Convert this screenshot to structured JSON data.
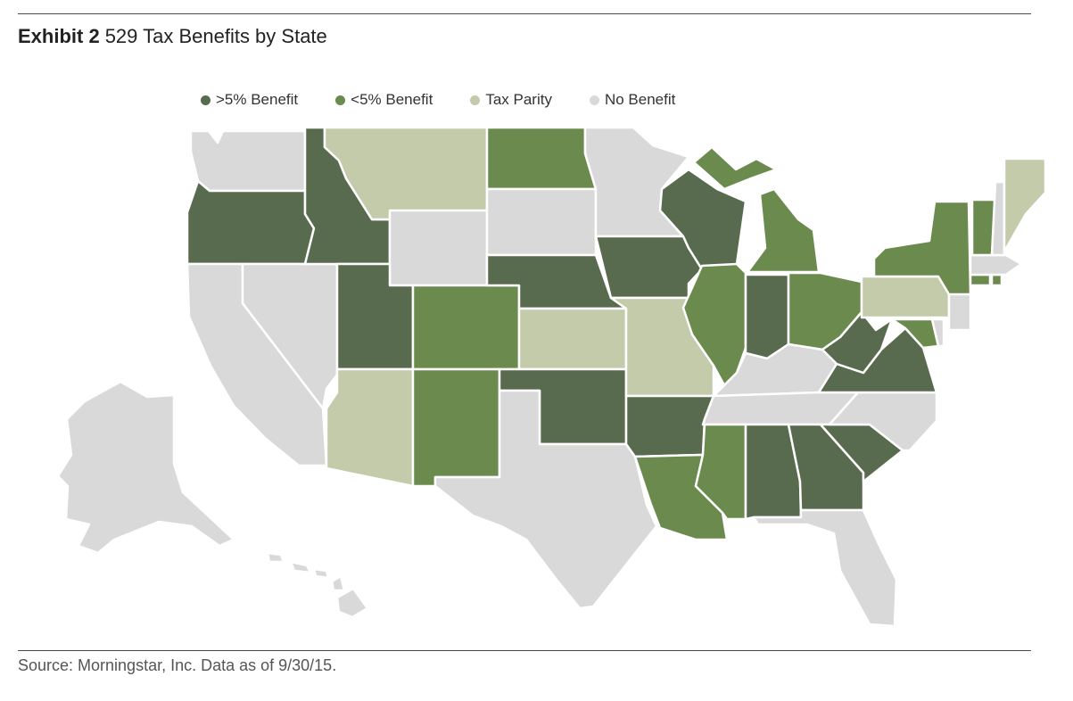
{
  "header": {
    "exhibit_label": "Exhibit 2",
    "title": "529 Tax Benefits by State"
  },
  "legend": [
    {
      "key": "gt5",
      "label": ">5% Benefit",
      "color": "#596b4e"
    },
    {
      "key": "lt5",
      "label": "<5% Benefit",
      "color": "#6b8a4d"
    },
    {
      "key": "parity",
      "label": "Tax Parity",
      "color": "#c3cbaa"
    },
    {
      "key": "none",
      "label": "No Benefit",
      "color": "#d9d9d9"
    }
  ],
  "footer": {
    "source": "Source: Morningstar, Inc. Data as of 9/30/15."
  },
  "states": {
    "WA": "none",
    "OR": "gt5",
    "CA": "none",
    "NV": "none",
    "ID": "gt5",
    "MT": "parity",
    "WY": "none",
    "UT": "gt5",
    "AZ": "parity",
    "CO": "lt5",
    "NM": "lt5",
    "ND": "lt5",
    "SD": "none",
    "NE": "gt5",
    "KS": "parity",
    "OK": "gt5",
    "TX": "none",
    "MN": "none",
    "IA": "gt5",
    "MO": "parity",
    "AR": "gt5",
    "LA": "lt5",
    "WI": "gt5",
    "IL": "lt5",
    "MI": "lt5",
    "IN": "gt5",
    "OH": "lt5",
    "KY": "none",
    "TN": "none",
    "MS": "lt5",
    "AL": "gt5",
    "GA": "gt5",
    "FL": "none",
    "SC": "gt5",
    "NC": "none",
    "VA": "gt5",
    "WV": "gt5",
    "MD": "lt5",
    "DE": "none",
    "PA": "parity",
    "NJ": "none",
    "NY": "lt5",
    "CT": "lt5",
    "RI": "lt5",
    "MA": "none",
    "VT": "lt5",
    "NH": "none",
    "ME": "parity",
    "AK": "none",
    "HI": "none"
  }
}
